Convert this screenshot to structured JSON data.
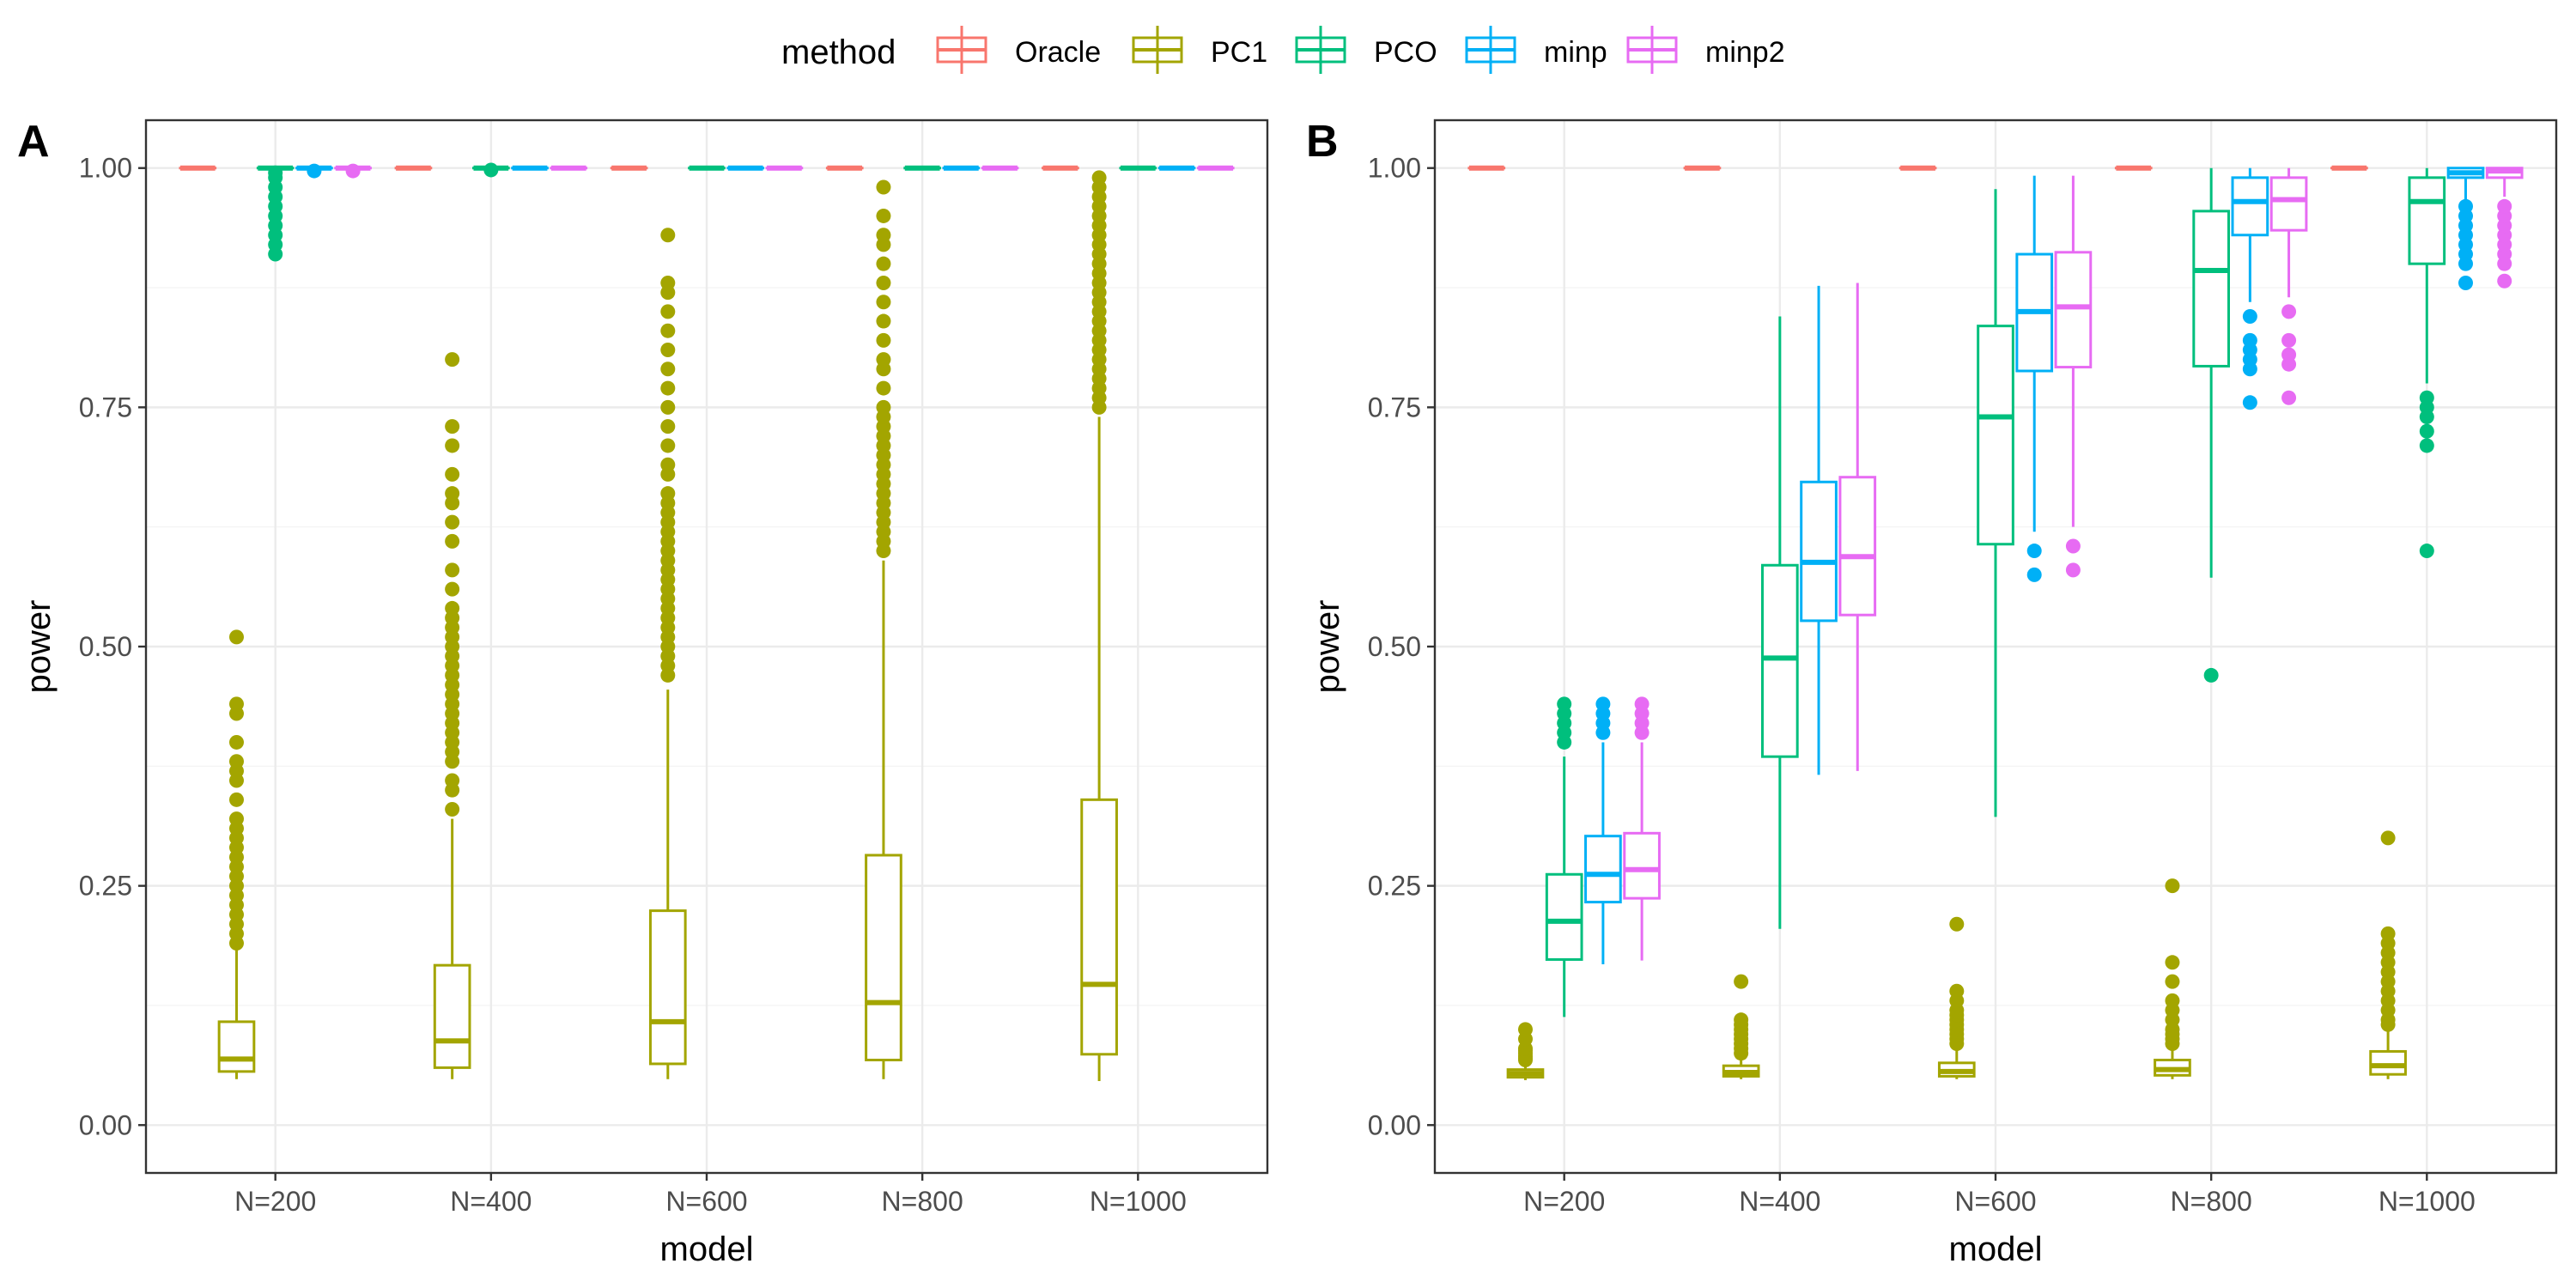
{
  "legend": {
    "title": "method",
    "entries": [
      {
        "name": "Oracle",
        "color": "#F8766D"
      },
      {
        "name": "PC1",
        "color": "#A3A500"
      },
      {
        "name": "PCO",
        "color": "#00BF7D"
      },
      {
        "name": "minp",
        "color": "#00B0F6"
      },
      {
        "name": "minp2",
        "color": "#E76BF3"
      }
    ],
    "position": "top"
  },
  "chart_data": [
    {
      "panel": "A",
      "type": "box",
      "xlabel": "model",
      "ylabel": "power",
      "categories": [
        "N=200",
        "N=400",
        "N=600",
        "N=800",
        "N=1000"
      ],
      "ylim": [
        -0.05,
        1.05
      ],
      "yticks": [
        "0.00",
        "0.25",
        "0.50",
        "0.75",
        "1.00"
      ],
      "grid": true,
      "series": [
        {
          "name": "Oracle",
          "boxes": [
            {
              "lo": 1.0,
              "q1": 1.0,
              "med": 1.0,
              "q3": 1.0,
              "hi": 1.0,
              "outliers": []
            },
            {
              "lo": 1.0,
              "q1": 1.0,
              "med": 1.0,
              "q3": 1.0,
              "hi": 1.0,
              "outliers": []
            },
            {
              "lo": 1.0,
              "q1": 1.0,
              "med": 1.0,
              "q3": 1.0,
              "hi": 1.0,
              "outliers": []
            },
            {
              "lo": 1.0,
              "q1": 1.0,
              "med": 1.0,
              "q3": 1.0,
              "hi": 1.0,
              "outliers": []
            },
            {
              "lo": 1.0,
              "q1": 1.0,
              "med": 1.0,
              "q3": 1.0,
              "hi": 1.0,
              "outliers": []
            }
          ]
        },
        {
          "name": "PC1",
          "boxes": [
            {
              "lo": 0.048,
              "q1": 0.056,
              "med": 0.069,
              "q3": 0.108,
              "hi": 0.185,
              "outliers": [
                0.19,
                0.2,
                0.21,
                0.22,
                0.23,
                0.24,
                0.25,
                0.26,
                0.27,
                0.28,
                0.29,
                0.3,
                0.31,
                0.32,
                0.34,
                0.36,
                0.37,
                0.38,
                0.4,
                0.43,
                0.44,
                0.51
              ]
            },
            {
              "lo": 0.048,
              "q1": 0.06,
              "med": 0.088,
              "q3": 0.167,
              "hi": 0.32,
              "outliers": [
                0.33,
                0.35,
                0.36,
                0.38,
                0.39,
                0.4,
                0.41,
                0.42,
                0.43,
                0.44,
                0.45,
                0.46,
                0.47,
                0.48,
                0.49,
                0.5,
                0.51,
                0.52,
                0.53,
                0.54,
                0.56,
                0.58,
                0.61,
                0.63,
                0.65,
                0.66,
                0.68,
                0.71,
                0.73,
                0.8
              ]
            },
            {
              "lo": 0.048,
              "q1": 0.064,
              "med": 0.108,
              "q3": 0.224,
              "hi": 0.455,
              "outliers": [
                0.47,
                0.48,
                0.49,
                0.5,
                0.51,
                0.52,
                0.53,
                0.54,
                0.55,
                0.56,
                0.57,
                0.58,
                0.59,
                0.6,
                0.61,
                0.62,
                0.63,
                0.64,
                0.65,
                0.66,
                0.68,
                0.69,
                0.71,
                0.73,
                0.75,
                0.77,
                0.79,
                0.81,
                0.83,
                0.85,
                0.87,
                0.88,
                0.93
              ]
            },
            {
              "lo": 0.048,
              "q1": 0.068,
              "med": 0.128,
              "q3": 0.282,
              "hi": 0.59,
              "outliers": [
                0.6,
                0.61,
                0.62,
                0.63,
                0.64,
                0.65,
                0.66,
                0.67,
                0.68,
                0.69,
                0.7,
                0.71,
                0.72,
                0.73,
                0.74,
                0.75,
                0.77,
                0.79,
                0.8,
                0.82,
                0.84,
                0.86,
                0.88,
                0.9,
                0.92,
                0.93,
                0.95,
                0.98
              ]
            },
            {
              "lo": 0.046,
              "q1": 0.074,
              "med": 0.147,
              "q3": 0.34,
              "hi": 0.74,
              "outliers": [
                0.75,
                0.76,
                0.77,
                0.78,
                0.79,
                0.8,
                0.81,
                0.82,
                0.83,
                0.84,
                0.85,
                0.86,
                0.87,
                0.88,
                0.89,
                0.9,
                0.91,
                0.92,
                0.93,
                0.94,
                0.95,
                0.96,
                0.97,
                0.98,
                0.99
              ]
            }
          ]
        },
        {
          "name": "PCO",
          "boxes": [
            {
              "lo": 1.0,
              "q1": 1.0,
              "med": 1.0,
              "q3": 1.0,
              "hi": 1.0,
              "outliers": [
                0.91,
                0.92,
                0.93,
                0.94,
                0.95,
                0.96,
                0.97,
                0.98,
                0.99,
                0.995
              ]
            },
            {
              "lo": 1.0,
              "q1": 1.0,
              "med": 1.0,
              "q3": 1.0,
              "hi": 1.0,
              "outliers": [
                0.998
              ]
            },
            {
              "lo": 1.0,
              "q1": 1.0,
              "med": 1.0,
              "q3": 1.0,
              "hi": 1.0,
              "outliers": []
            },
            {
              "lo": 1.0,
              "q1": 1.0,
              "med": 1.0,
              "q3": 1.0,
              "hi": 1.0,
              "outliers": []
            },
            {
              "lo": 1.0,
              "q1": 1.0,
              "med": 1.0,
              "q3": 1.0,
              "hi": 1.0,
              "outliers": []
            }
          ]
        },
        {
          "name": "minp",
          "boxes": [
            {
              "lo": 1.0,
              "q1": 1.0,
              "med": 1.0,
              "q3": 1.0,
              "hi": 1.0,
              "outliers": [
                0.997
              ]
            },
            {
              "lo": 1.0,
              "q1": 1.0,
              "med": 1.0,
              "q3": 1.0,
              "hi": 1.0,
              "outliers": []
            },
            {
              "lo": 1.0,
              "q1": 1.0,
              "med": 1.0,
              "q3": 1.0,
              "hi": 1.0,
              "outliers": []
            },
            {
              "lo": 1.0,
              "q1": 1.0,
              "med": 1.0,
              "q3": 1.0,
              "hi": 1.0,
              "outliers": []
            },
            {
              "lo": 1.0,
              "q1": 1.0,
              "med": 1.0,
              "q3": 1.0,
              "hi": 1.0,
              "outliers": []
            }
          ]
        },
        {
          "name": "minp2",
          "boxes": [
            {
              "lo": 1.0,
              "q1": 1.0,
              "med": 1.0,
              "q3": 1.0,
              "hi": 1.0,
              "outliers": [
                0.997
              ]
            },
            {
              "lo": 1.0,
              "q1": 1.0,
              "med": 1.0,
              "q3": 1.0,
              "hi": 1.0,
              "outliers": []
            },
            {
              "lo": 1.0,
              "q1": 1.0,
              "med": 1.0,
              "q3": 1.0,
              "hi": 1.0,
              "outliers": []
            },
            {
              "lo": 1.0,
              "q1": 1.0,
              "med": 1.0,
              "q3": 1.0,
              "hi": 1.0,
              "outliers": []
            },
            {
              "lo": 1.0,
              "q1": 1.0,
              "med": 1.0,
              "q3": 1.0,
              "hi": 1.0,
              "outliers": []
            }
          ]
        }
      ]
    },
    {
      "panel": "B",
      "type": "box",
      "xlabel": "model",
      "ylabel": "power",
      "categories": [
        "N=200",
        "N=400",
        "N=600",
        "N=800",
        "N=1000"
      ],
      "ylim": [
        -0.05,
        1.05
      ],
      "yticks": [
        "0.00",
        "0.25",
        "0.50",
        "0.75",
        "1.00"
      ],
      "grid": true,
      "series": [
        {
          "name": "Oracle",
          "boxes": [
            {
              "lo": 1.0,
              "q1": 1.0,
              "med": 1.0,
              "q3": 1.0,
              "hi": 1.0,
              "outliers": []
            },
            {
              "lo": 1.0,
              "q1": 1.0,
              "med": 1.0,
              "q3": 1.0,
              "hi": 1.0,
              "outliers": []
            },
            {
              "lo": 1.0,
              "q1": 1.0,
              "med": 1.0,
              "q3": 1.0,
              "hi": 1.0,
              "outliers": []
            },
            {
              "lo": 1.0,
              "q1": 1.0,
              "med": 1.0,
              "q3": 1.0,
              "hi": 1.0,
              "outliers": []
            },
            {
              "lo": 1.0,
              "q1": 1.0,
              "med": 1.0,
              "q3": 1.0,
              "hi": 1.0,
              "outliers": []
            }
          ]
        },
        {
          "name": "PC1",
          "boxes": [
            {
              "lo": 0.047,
              "q1": 0.05,
              "med": 0.054,
              "q3": 0.058,
              "hi": 0.065,
              "outliers": [
                0.068,
                0.07,
                0.072,
                0.075,
                0.078,
                0.08,
                0.09,
                0.1
              ]
            },
            {
              "lo": 0.048,
              "q1": 0.051,
              "med": 0.055,
              "q3": 0.062,
              "hi": 0.072,
              "outliers": [
                0.075,
                0.08,
                0.085,
                0.09,
                0.095,
                0.1,
                0.105,
                0.11,
                0.15
              ]
            },
            {
              "lo": 0.048,
              "q1": 0.051,
              "med": 0.056,
              "q3": 0.065,
              "hi": 0.08,
              "outliers": [
                0.085,
                0.09,
                0.095,
                0.1,
                0.105,
                0.11,
                0.115,
                0.12,
                0.13,
                0.14,
                0.21
              ]
            },
            {
              "lo": 0.048,
              "q1": 0.052,
              "med": 0.058,
              "q3": 0.068,
              "hi": 0.082,
              "outliers": [
                0.085,
                0.09,
                0.095,
                0.1,
                0.11,
                0.12,
                0.13,
                0.15,
                0.17,
                0.25
              ]
            },
            {
              "lo": 0.048,
              "q1": 0.053,
              "med": 0.062,
              "q3": 0.077,
              "hi": 0.1,
              "outliers": [
                0.105,
                0.11,
                0.12,
                0.13,
                0.14,
                0.15,
                0.16,
                0.17,
                0.18,
                0.19,
                0.2,
                0.3
              ]
            }
          ]
        },
        {
          "name": "PCO",
          "boxes": [
            {
              "lo": 0.113,
              "q1": 0.173,
              "med": 0.213,
              "q3": 0.262,
              "hi": 0.385,
              "outliers": [
                0.4,
                0.41,
                0.42,
                0.43,
                0.44
              ]
            },
            {
              "lo": 0.205,
              "q1": 0.385,
              "med": 0.488,
              "q3": 0.585,
              "hi": 0.845,
              "outliers": []
            },
            {
              "lo": 0.322,
              "q1": 0.607,
              "med": 0.74,
              "q3": 0.835,
              "hi": 0.978,
              "outliers": []
            },
            {
              "lo": 0.572,
              "q1": 0.793,
              "med": 0.893,
              "q3": 0.955,
              "hi": 1.0,
              "outliers": [
                0.47
              ]
            },
            {
              "lo": 0.775,
              "q1": 0.9,
              "med": 0.965,
              "q3": 0.99,
              "hi": 1.0,
              "outliers": [
                0.6,
                0.71,
                0.725,
                0.74,
                0.75,
                0.76
              ]
            }
          ]
        },
        {
          "name": "minp",
          "boxes": [
            {
              "lo": 0.168,
              "q1": 0.233,
              "med": 0.262,
              "q3": 0.302,
              "hi": 0.4,
              "outliers": [
                0.41,
                0.42,
                0.43,
                0.44
              ]
            },
            {
              "lo": 0.366,
              "q1": 0.527,
              "med": 0.588,
              "q3": 0.672,
              "hi": 0.877,
              "outliers": []
            },
            {
              "lo": 0.62,
              "q1": 0.788,
              "med": 0.85,
              "q3": 0.91,
              "hi": 0.992,
              "outliers": [
                0.575,
                0.6
              ]
            },
            {
              "lo": 0.86,
              "q1": 0.93,
              "med": 0.965,
              "q3": 0.99,
              "hi": 1.0,
              "outliers": [
                0.755,
                0.79,
                0.8,
                0.81,
                0.82,
                0.845
              ]
            },
            {
              "lo": 0.965,
              "q1": 0.99,
              "med": 0.995,
              "q3": 1.0,
              "hi": 1.0,
              "outliers": [
                0.88,
                0.9,
                0.91,
                0.92,
                0.93,
                0.94,
                0.95,
                0.96
              ]
            }
          ]
        },
        {
          "name": "minp2",
          "boxes": [
            {
              "lo": 0.172,
              "q1": 0.237,
              "med": 0.267,
              "q3": 0.305,
              "hi": 0.4,
              "outliers": [
                0.41,
                0.42,
                0.43,
                0.44
              ]
            },
            {
              "lo": 0.37,
              "q1": 0.533,
              "med": 0.594,
              "q3": 0.677,
              "hi": 0.88,
              "outliers": []
            },
            {
              "lo": 0.625,
              "q1": 0.792,
              "med": 0.855,
              "q3": 0.912,
              "hi": 0.992,
              "outliers": [
                0.58,
                0.605
              ]
            },
            {
              "lo": 0.865,
              "q1": 0.935,
              "med": 0.967,
              "q3": 0.99,
              "hi": 1.0,
              "outliers": [
                0.76,
                0.795,
                0.805,
                0.82,
                0.85
              ]
            },
            {
              "lo": 0.97,
              "q1": 0.99,
              "med": 0.997,
              "q3": 1.0,
              "hi": 1.0,
              "outliers": [
                0.882,
                0.9,
                0.91,
                0.92,
                0.93,
                0.94,
                0.95,
                0.96
              ]
            }
          ]
        }
      ]
    }
  ]
}
